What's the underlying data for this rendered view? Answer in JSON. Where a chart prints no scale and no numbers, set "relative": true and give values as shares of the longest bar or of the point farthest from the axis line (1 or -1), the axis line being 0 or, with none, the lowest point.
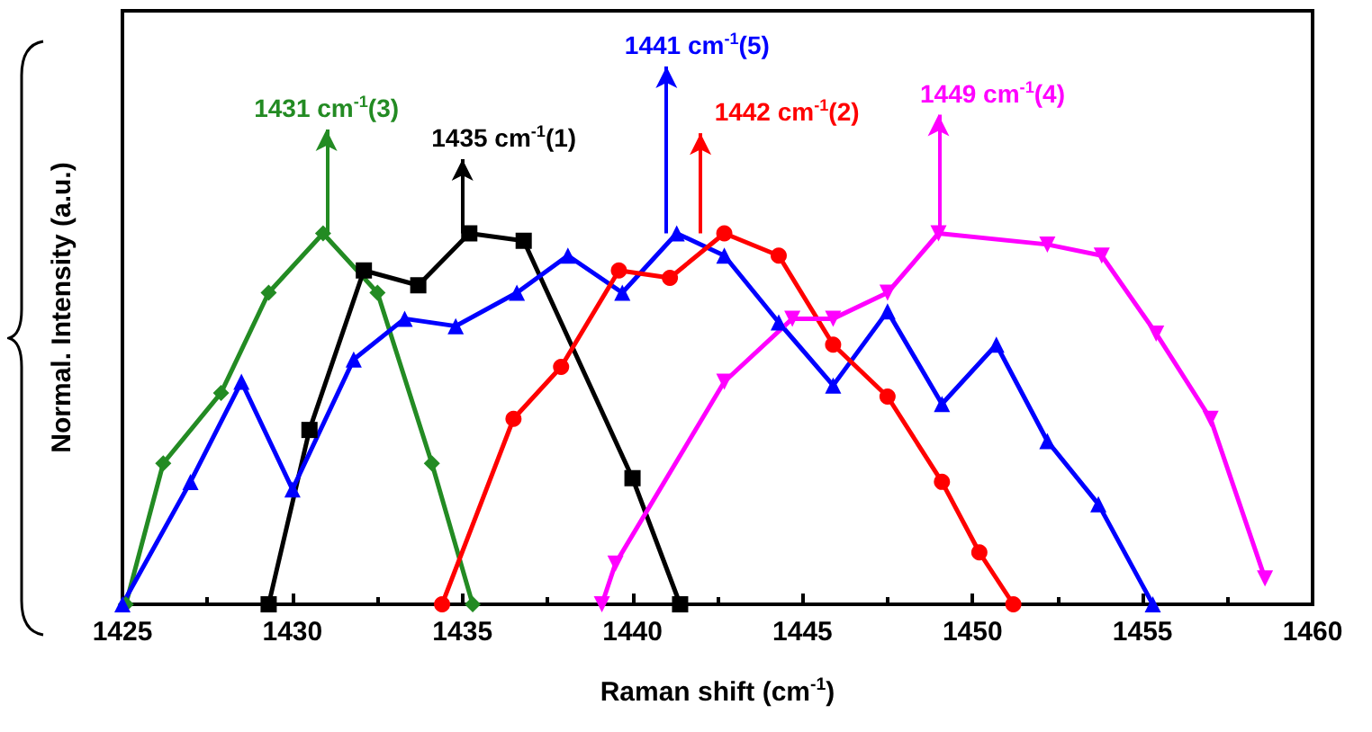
{
  "chart_data": {
    "type": "line",
    "relative": true,
    "xlabel": "Raman shift (cm$^{-1}$)",
    "ylabel": "Normal. Intensity (a.u.)",
    "xlim": [
      1425,
      1460
    ],
    "xticks": [
      1425,
      1430,
      1435,
      1440,
      1445,
      1450,
      1455,
      1460
    ],
    "grid": false,
    "line_style": "solid",
    "series": [
      {
        "color": "#238b23",
        "marker": "diamond",
        "x": [
          1425.1,
          1426.2,
          1427.9,
          1429.3,
          1430.9,
          1432.5,
          1434.1,
          1435.3
        ],
        "values": [
          0,
          0.38,
          0.57,
          0.84,
          1.0,
          0.84,
          0.38,
          0
        ]
      },
      {
        "color": "#000000",
        "marker": "square",
        "x": [
          1429.3,
          1430.5,
          1432.1,
          1433.7,
          1435.2,
          1436.8,
          1440.0,
          1441.4
        ],
        "values": [
          0,
          0.47,
          0.9,
          0.86,
          1.0,
          0.98,
          0.34,
          0
        ]
      },
      {
        "color": "#0000ff",
        "marker": "triangle",
        "x": [
          1425.0,
          1427.0,
          1428.5,
          1430.0,
          1431.8,
          1433.3,
          1434.8,
          1436.6,
          1438.1,
          1439.7,
          1441.3,
          1442.7,
          1444.3,
          1445.9,
          1447.5,
          1449.1,
          1450.7,
          1452.2,
          1453.7,
          1455.3
        ],
        "values": [
          0,
          0.33,
          0.6,
          0.31,
          0.66,
          0.77,
          0.75,
          0.84,
          0.94,
          0.84,
          1.0,
          0.94,
          0.76,
          0.59,
          0.79,
          0.54,
          0.7,
          0.44,
          0.27,
          0
        ]
      },
      {
        "color": "#ff0000",
        "marker": "circle",
        "x": [
          1434.4,
          1436.5,
          1437.9,
          1439.6,
          1441.1,
          1442.7,
          1444.3,
          1445.9,
          1447.5,
          1449.1,
          1450.2,
          1451.2
        ],
        "values": [
          0,
          0.5,
          0.64,
          0.9,
          0.88,
          1.0,
          0.94,
          0.7,
          0.56,
          0.33,
          0.14,
          0
        ]
      },
      {
        "color": "#ff00ff",
        "marker": "triangle-down",
        "x": [
          1439.1,
          1439.5,
          1442.7,
          1444.7,
          1445.9,
          1447.5,
          1449.0,
          1452.2,
          1453.8,
          1455.4,
          1457.0,
          1458.6
        ],
        "values": [
          0,
          0.11,
          0.6,
          0.77,
          0.77,
          0.84,
          1.0,
          0.97,
          0.94,
          0.73,
          0.5,
          0.07
        ]
      }
    ],
    "annotations": [
      {
        "text": "1431 cm$^{-1}$(3)",
        "x": 1431,
        "y": 1.0
      },
      {
        "text": "1435 cm$^{-1}$(1)",
        "x": 1435,
        "y": 1.0
      },
      {
        "text": "1441 cm$^{-1}$(5)",
        "x": 1441,
        "y": 1.0
      },
      {
        "text": "1442 cm$^{-1}$(2)",
        "x": 1442,
        "y": 1.0
      },
      {
        "text": "1449 cm$^{-1}$(4)",
        "x": 1449,
        "y": 1.0
      }
    ]
  }
}
